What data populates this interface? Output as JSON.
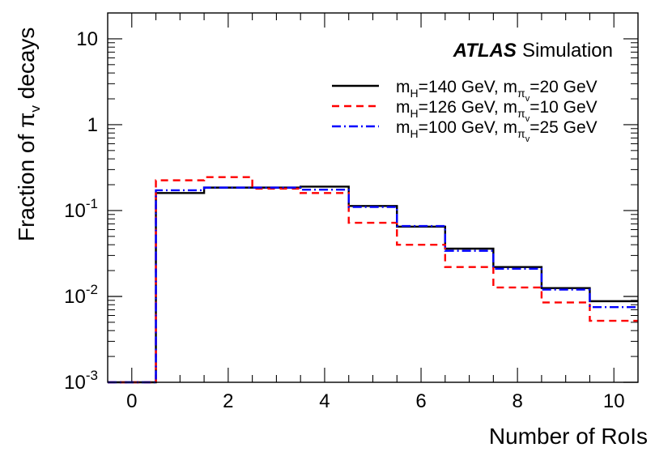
{
  "chart_data": {
    "type": "step",
    "title": "",
    "xlabel": "Number of RoIs",
    "ylabel_parts": {
      "main": "Fraction of ",
      "symbol": "π",
      "sub": "v",
      "tail": " decays"
    },
    "xlim": [
      -0.5,
      10.5
    ],
    "ylim": [
      0.001,
      20
    ],
    "yscale": "log",
    "x_ticks": [
      0,
      2,
      4,
      6,
      8,
      10
    ],
    "y_ticks": [
      {
        "value": 0.001,
        "base": "10",
        "exp": "-3"
      },
      {
        "value": 0.01,
        "base": "10",
        "exp": "-2"
      },
      {
        "value": 0.1,
        "base": "10",
        "exp": "-1"
      },
      {
        "value": 1,
        "base": "1",
        "exp": ""
      },
      {
        "value": 10,
        "base": "10",
        "exp": ""
      }
    ],
    "categories": [
      0,
      1,
      2,
      3,
      4,
      5,
      6,
      7,
      8,
      9,
      10
    ],
    "series": [
      {
        "name": "mH=140 GeV, mπv=20 GeV",
        "legend": {
          "m1": "m",
          "s1": "H",
          "t1": "=140 GeV, ",
          "m2": "m",
          "s2": "π",
          "ss2": "v",
          "t2": "=20 GeV"
        },
        "color": "#000000",
        "style": "solid",
        "values": [
          0.001,
          0.16,
          0.185,
          0.185,
          0.19,
          0.113,
          0.065,
          0.036,
          0.022,
          0.0125,
          0.0088
        ]
      },
      {
        "name": "mH=126 GeV, mπv=10 GeV",
        "legend": {
          "m1": "m",
          "s1": "H",
          "t1": "=126 GeV, ",
          "m2": "m",
          "s2": "π",
          "ss2": "v",
          "t2": "=10 GeV"
        },
        "color": "#ff0000",
        "style": "dashed",
        "values": [
          0.001,
          0.225,
          0.245,
          0.18,
          0.16,
          0.072,
          0.04,
          0.022,
          0.0127,
          0.0085,
          0.0052
        ]
      },
      {
        "name": "mH=100 GeV, mπv=25 GeV",
        "legend": {
          "m1": "m",
          "s1": "H",
          "t1": "=100 GeV, ",
          "m2": "m",
          "s2": "π",
          "ss2": "v",
          "t2": "=25 GeV"
        },
        "color": "#0000ff",
        "style": "dashdot",
        "values": [
          0.001,
          0.172,
          0.185,
          0.185,
          0.175,
          0.11,
          0.066,
          0.034,
          0.021,
          0.012,
          0.0075
        ]
      }
    ],
    "annotation": {
      "bold": "ATLAS",
      "normal": "Simulation"
    },
    "legend_position": "top-right"
  }
}
